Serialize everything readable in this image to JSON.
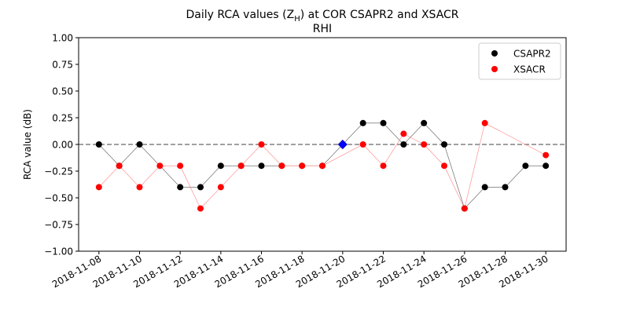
{
  "chart_data": {
    "type": "scatter",
    "title_line1": "Daily RCA values (Z",
    "title_sub": "H",
    "title_line1_end": ") at COR CSAPR2 and XSACR",
    "title_line2": "RHI",
    "ylabel": "RCA value (dB)",
    "xlabel": "",
    "ylim": [
      -1.0,
      1.0
    ],
    "xlim": [
      "2018-11-07",
      "2018-12-01"
    ],
    "yticks": [
      "−1.00",
      "−0.75",
      "−0.50",
      "−0.25",
      "0.00",
      "0.25",
      "0.50",
      "0.75",
      "1.00"
    ],
    "ytick_values": [
      -1.0,
      -0.75,
      -0.5,
      -0.25,
      0.0,
      0.25,
      0.5,
      0.75,
      1.0
    ],
    "xticks": [
      "2018-11-08",
      "2018-11-10",
      "2018-11-12",
      "2018-11-14",
      "2018-11-16",
      "2018-11-18",
      "2018-11-20",
      "2018-11-22",
      "2018-11-24",
      "2018-11-26",
      "2018-11-28",
      "2018-11-30"
    ],
    "reference_line": 0.0,
    "legend_position": "top-right",
    "series": [
      {
        "name": "CSAPR2",
        "color": "#000000",
        "points": [
          {
            "x": "2018-11-08",
            "y": 0.0
          },
          {
            "x": "2018-11-09",
            "y": -0.2
          },
          {
            "x": "2018-11-10",
            "y": 0.0
          },
          {
            "x": "2018-11-12",
            "y": -0.4
          },
          {
            "x": "2018-11-13",
            "y": -0.4
          },
          {
            "x": "2018-11-14",
            "y": -0.2
          },
          {
            "x": "2018-11-15",
            "y": -0.2
          },
          {
            "x": "2018-11-16",
            "y": -0.2
          },
          {
            "x": "2018-11-17",
            "y": -0.2
          },
          {
            "x": "2018-11-18",
            "y": -0.2
          },
          {
            "x": "2018-11-19",
            "y": -0.2
          },
          {
            "x": "2018-11-21",
            "y": 0.2
          },
          {
            "x": "2018-11-22",
            "y": 0.2
          },
          {
            "x": "2018-11-23",
            "y": 0.0
          },
          {
            "x": "2018-11-24",
            "y": 0.2
          },
          {
            "x": "2018-11-25",
            "y": 0.0
          },
          {
            "x": "2018-11-26",
            "y": -0.6
          },
          {
            "x": "2018-11-27",
            "y": -0.4
          },
          {
            "x": "2018-11-28",
            "y": -0.4
          },
          {
            "x": "2018-11-29",
            "y": -0.2
          },
          {
            "x": "2018-11-30",
            "y": -0.2
          }
        ]
      },
      {
        "name": "XSACR",
        "color": "#ff0000",
        "points": [
          {
            "x": "2018-11-08",
            "y": -0.4
          },
          {
            "x": "2018-11-09",
            "y": -0.2
          },
          {
            "x": "2018-11-10",
            "y": -0.4
          },
          {
            "x": "2018-11-11",
            "y": -0.2
          },
          {
            "x": "2018-11-12",
            "y": -0.2
          },
          {
            "x": "2018-11-13",
            "y": -0.6
          },
          {
            "x": "2018-11-14",
            "y": -0.4
          },
          {
            "x": "2018-11-15",
            "y": -0.2
          },
          {
            "x": "2018-11-16",
            "y": 0.0
          },
          {
            "x": "2018-11-17",
            "y": -0.2
          },
          {
            "x": "2018-11-18",
            "y": -0.2
          },
          {
            "x": "2018-11-19",
            "y": -0.2
          },
          {
            "x": "2018-11-21",
            "y": 0.0
          },
          {
            "x": "2018-11-22",
            "y": -0.2
          },
          {
            "x": "2018-11-23",
            "y": 0.1
          },
          {
            "x": "2018-11-24",
            "y": 0.0
          },
          {
            "x": "2018-11-25",
            "y": -0.2
          },
          {
            "x": "2018-11-26",
            "y": -0.6
          },
          {
            "x": "2018-11-27",
            "y": 0.2
          },
          {
            "x": "2018-11-30",
            "y": -0.1
          }
        ]
      }
    ],
    "special_markers": [
      {
        "x": "2018-11-20",
        "y": 0.0,
        "shape": "diamond",
        "color": "#0000ff"
      }
    ]
  }
}
